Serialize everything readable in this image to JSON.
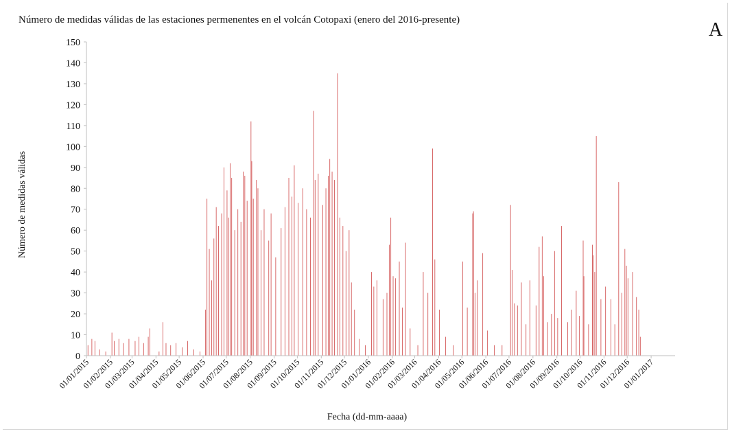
{
  "chart_data": {
    "type": "bar",
    "title": "Número de medidas válidas de las estaciones permenentes en el volcán Cotopaxi (enero del 2016-presente)",
    "panel_label": "A",
    "xlabel": "Fecha (dd-mm-aaaa)",
    "ylabel": "Número de medidas válidas",
    "ylim": [
      0,
      150
    ],
    "yticks": [
      0,
      10,
      20,
      30,
      40,
      50,
      60,
      70,
      80,
      90,
      100,
      110,
      120,
      130,
      140,
      150
    ],
    "xlim": [
      "2015-01-01",
      "2017-02-01"
    ],
    "xticks": [
      {
        "date": "2015-01-01",
        "label": "01/01/2015"
      },
      {
        "date": "2015-02-01",
        "label": "01/02/2015"
      },
      {
        "date": "2015-03-01",
        "label": "01/03/2015"
      },
      {
        "date": "2015-04-01",
        "label": "01/04/2015"
      },
      {
        "date": "2015-05-01",
        "label": "01/05/2015"
      },
      {
        "date": "2015-06-01",
        "label": "01/06/2015"
      },
      {
        "date": "2015-07-01",
        "label": "01/07/2015"
      },
      {
        "date": "2015-08-01",
        "label": "01/08/2015"
      },
      {
        "date": "2015-09-01",
        "label": "01/09/2015"
      },
      {
        "date": "2015-10-01",
        "label": "01/10/2015"
      },
      {
        "date": "2015-11-01",
        "label": "01/11/2015"
      },
      {
        "date": "2015-12-01",
        "label": "01/12/2015"
      },
      {
        "date": "2016-01-01",
        "label": "01/01/2016"
      },
      {
        "date": "2016-02-01",
        "label": "01/02/2016"
      },
      {
        "date": "2016-03-01",
        "label": "01/03/2016"
      },
      {
        "date": "2016-04-01",
        "label": "01/04/2016"
      },
      {
        "date": "2016-05-01",
        "label": "01/05/2016"
      },
      {
        "date": "2016-06-01",
        "label": "01/06/2016"
      },
      {
        "date": "2016-07-01",
        "label": "01/07/2016"
      },
      {
        "date": "2016-08-01",
        "label": "01/08/2016"
      },
      {
        "date": "2016-09-01",
        "label": "01/09/2016"
      },
      {
        "date": "2016-10-01",
        "label": "01/10/2016"
      },
      {
        "date": "2016-11-01",
        "label": "01/11/2016"
      },
      {
        "date": "2016-12-01",
        "label": "01/12/2016"
      },
      {
        "date": "2017-01-01",
        "label": "01/01/2017"
      }
    ],
    "grid": false,
    "legend": "none",
    "bar_color": "#d45a5a",
    "axis_color": "#bfbfbf",
    "series_peaks": [
      {
        "date": "2015-01-03",
        "value": 5
      },
      {
        "date": "2015-01-08",
        "value": 8
      },
      {
        "date": "2015-01-12",
        "value": 7
      },
      {
        "date": "2015-01-18",
        "value": 3
      },
      {
        "date": "2015-01-26",
        "value": 2
      },
      {
        "date": "2015-02-03",
        "value": 11
      },
      {
        "date": "2015-02-06",
        "value": 7
      },
      {
        "date": "2015-02-12",
        "value": 8
      },
      {
        "date": "2015-02-18",
        "value": 6
      },
      {
        "date": "2015-02-25",
        "value": 8
      },
      {
        "date": "2015-03-05",
        "value": 7
      },
      {
        "date": "2015-03-10",
        "value": 9
      },
      {
        "date": "2015-03-16",
        "value": 6
      },
      {
        "date": "2015-03-22",
        "value": 9
      },
      {
        "date": "2015-03-24",
        "value": 13
      },
      {
        "date": "2015-04-05",
        "value": 2
      },
      {
        "date": "2015-04-10",
        "value": 16
      },
      {
        "date": "2015-04-14",
        "value": 6
      },
      {
        "date": "2015-04-20",
        "value": 5
      },
      {
        "date": "2015-04-27",
        "value": 6
      },
      {
        "date": "2015-05-05",
        "value": 4
      },
      {
        "date": "2015-05-12",
        "value": 7
      },
      {
        "date": "2015-05-20",
        "value": 3
      },
      {
        "date": "2015-05-28",
        "value": 2
      },
      {
        "date": "2015-06-04",
        "value": 22
      },
      {
        "date": "2015-06-06",
        "value": 75
      },
      {
        "date": "2015-06-09",
        "value": 51
      },
      {
        "date": "2015-06-12",
        "value": 36
      },
      {
        "date": "2015-06-15",
        "value": 56
      },
      {
        "date": "2015-06-18",
        "value": 71
      },
      {
        "date": "2015-06-21",
        "value": 62
      },
      {
        "date": "2015-06-25",
        "value": 68
      },
      {
        "date": "2015-06-28",
        "value": 90
      },
      {
        "date": "2015-07-02",
        "value": 79
      },
      {
        "date": "2015-07-04",
        "value": 66
      },
      {
        "date": "2015-07-06",
        "value": 92
      },
      {
        "date": "2015-07-08",
        "value": 85
      },
      {
        "date": "2015-07-12",
        "value": 60
      },
      {
        "date": "2015-07-16",
        "value": 70
      },
      {
        "date": "2015-07-20",
        "value": 64
      },
      {
        "date": "2015-07-23",
        "value": 88
      },
      {
        "date": "2015-07-25",
        "value": 86
      },
      {
        "date": "2015-07-28",
        "value": 74
      },
      {
        "date": "2015-08-02",
        "value": 112
      },
      {
        "date": "2015-08-03",
        "value": 93
      },
      {
        "date": "2015-08-05",
        "value": 75
      },
      {
        "date": "2015-08-09",
        "value": 84
      },
      {
        "date": "2015-08-11",
        "value": 80
      },
      {
        "date": "2015-08-15",
        "value": 60
      },
      {
        "date": "2015-08-19",
        "value": 70
      },
      {
        "date": "2015-08-25",
        "value": 55
      },
      {
        "date": "2015-08-28",
        "value": 68
      },
      {
        "date": "2015-09-03",
        "value": 47
      },
      {
        "date": "2015-09-10",
        "value": 61
      },
      {
        "date": "2015-09-15",
        "value": 71
      },
      {
        "date": "2015-09-20",
        "value": 85
      },
      {
        "date": "2015-09-24",
        "value": 76
      },
      {
        "date": "2015-09-27",
        "value": 91
      },
      {
        "date": "2015-10-02",
        "value": 73
      },
      {
        "date": "2015-10-08",
        "value": 80
      },
      {
        "date": "2015-10-13",
        "value": 70
      },
      {
        "date": "2015-10-18",
        "value": 66
      },
      {
        "date": "2015-10-22",
        "value": 117
      },
      {
        "date": "2015-10-24",
        "value": 84
      },
      {
        "date": "2015-10-28",
        "value": 87
      },
      {
        "date": "2015-11-03",
        "value": 72
      },
      {
        "date": "2015-11-07",
        "value": 80
      },
      {
        "date": "2015-11-10",
        "value": 86
      },
      {
        "date": "2015-11-12",
        "value": 94
      },
      {
        "date": "2015-11-15",
        "value": 88
      },
      {
        "date": "2015-11-18",
        "value": 84
      },
      {
        "date": "2015-11-22",
        "value": 135
      },
      {
        "date": "2015-11-25",
        "value": 66
      },
      {
        "date": "2015-11-29",
        "value": 62
      },
      {
        "date": "2015-12-03",
        "value": 50
      },
      {
        "date": "2015-12-07",
        "value": 60
      },
      {
        "date": "2015-12-10",
        "value": 35
      },
      {
        "date": "2015-12-14",
        "value": 22
      },
      {
        "date": "2015-12-20",
        "value": 8
      },
      {
        "date": "2015-12-28",
        "value": 5
      },
      {
        "date": "2016-01-05",
        "value": 40
      },
      {
        "date": "2016-01-08",
        "value": 33
      },
      {
        "date": "2016-01-12",
        "value": 36
      },
      {
        "date": "2016-01-20",
        "value": 27
      },
      {
        "date": "2016-01-25",
        "value": 30
      },
      {
        "date": "2016-01-28",
        "value": 53
      },
      {
        "date": "2016-01-30",
        "value": 66
      },
      {
        "date": "2016-02-02",
        "value": 38
      },
      {
        "date": "2016-02-05",
        "value": 37
      },
      {
        "date": "2016-02-10",
        "value": 45
      },
      {
        "date": "2016-02-14",
        "value": 23
      },
      {
        "date": "2016-02-18",
        "value": 54
      },
      {
        "date": "2016-02-24",
        "value": 13
      },
      {
        "date": "2016-03-05",
        "value": 5
      },
      {
        "date": "2016-03-12",
        "value": 40
      },
      {
        "date": "2016-03-18",
        "value": 30
      },
      {
        "date": "2016-03-24",
        "value": 99
      },
      {
        "date": "2016-03-27",
        "value": 46
      },
      {
        "date": "2016-04-02",
        "value": 22
      },
      {
        "date": "2016-04-10",
        "value": 9
      },
      {
        "date": "2016-04-20",
        "value": 5
      },
      {
        "date": "2016-05-02",
        "value": 45
      },
      {
        "date": "2016-05-08",
        "value": 23
      },
      {
        "date": "2016-05-15",
        "value": 68
      },
      {
        "date": "2016-05-16",
        "value": 69
      },
      {
        "date": "2016-05-18",
        "value": 30
      },
      {
        "date": "2016-05-21",
        "value": 36
      },
      {
        "date": "2016-05-28",
        "value": 49
      },
      {
        "date": "2016-06-03",
        "value": 12
      },
      {
        "date": "2016-06-12",
        "value": 5
      },
      {
        "date": "2016-06-22",
        "value": 5
      },
      {
        "date": "2016-07-03",
        "value": 72
      },
      {
        "date": "2016-07-05",
        "value": 41
      },
      {
        "date": "2016-07-08",
        "value": 25
      },
      {
        "date": "2016-07-12",
        "value": 24
      },
      {
        "date": "2016-07-17",
        "value": 35
      },
      {
        "date": "2016-07-23",
        "value": 15
      },
      {
        "date": "2016-07-28",
        "value": 36
      },
      {
        "date": "2016-08-05",
        "value": 24
      },
      {
        "date": "2016-08-09",
        "value": 52
      },
      {
        "date": "2016-08-13",
        "value": 57
      },
      {
        "date": "2016-08-15",
        "value": 38
      },
      {
        "date": "2016-08-20",
        "value": 16
      },
      {
        "date": "2016-08-25",
        "value": 20
      },
      {
        "date": "2016-08-29",
        "value": 50
      },
      {
        "date": "2016-09-02",
        "value": 18
      },
      {
        "date": "2016-09-07",
        "value": 62
      },
      {
        "date": "2016-09-15",
        "value": 16
      },
      {
        "date": "2016-09-20",
        "value": 22
      },
      {
        "date": "2016-09-26",
        "value": 31
      },
      {
        "date": "2016-09-30",
        "value": 19
      },
      {
        "date": "2016-10-05",
        "value": 55
      },
      {
        "date": "2016-10-06",
        "value": 38
      },
      {
        "date": "2016-10-12",
        "value": 15
      },
      {
        "date": "2016-10-17",
        "value": 53
      },
      {
        "date": "2016-10-18",
        "value": 48
      },
      {
        "date": "2016-10-20",
        "value": 40
      },
      {
        "date": "2016-10-22",
        "value": 105
      },
      {
        "date": "2016-10-28",
        "value": 27
      },
      {
        "date": "2016-11-03",
        "value": 33
      },
      {
        "date": "2016-11-10",
        "value": 27
      },
      {
        "date": "2016-11-15",
        "value": 15
      },
      {
        "date": "2016-11-20",
        "value": 83
      },
      {
        "date": "2016-11-24",
        "value": 30
      },
      {
        "date": "2016-11-28",
        "value": 51
      },
      {
        "date": "2016-11-30",
        "value": 43
      },
      {
        "date": "2016-12-02",
        "value": 37
      },
      {
        "date": "2016-12-08",
        "value": 40
      },
      {
        "date": "2016-12-13",
        "value": 28
      },
      {
        "date": "2016-12-16",
        "value": 22
      },
      {
        "date": "2016-12-18",
        "value": 9
      }
    ]
  }
}
